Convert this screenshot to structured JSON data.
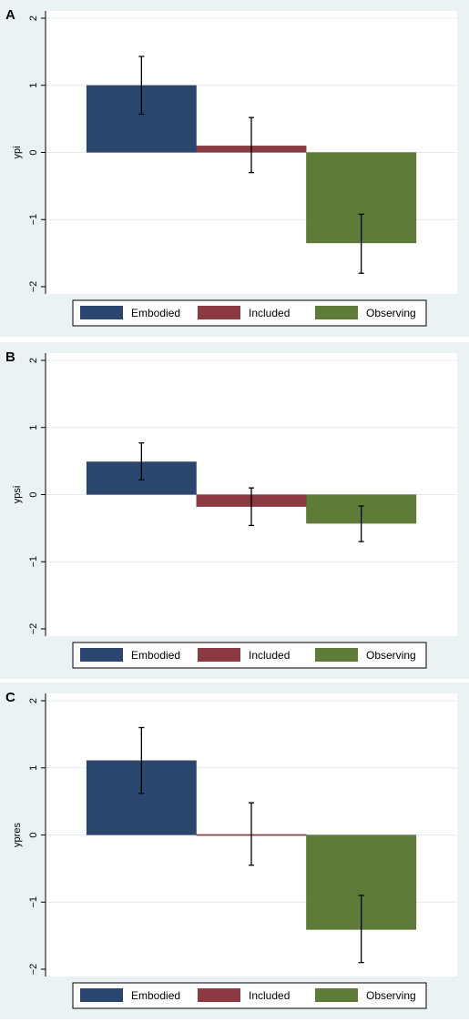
{
  "colors": {
    "panel_background": "#eaf2f3",
    "plot_background": "#ffffff",
    "gridline": "#e3ecee",
    "error_bar": "#000000",
    "series": {
      "Embodied": "#2a466f",
      "Included": "#8b3a42",
      "Observing": "#5f7b38"
    }
  },
  "chart_data": [
    {
      "panel_label": "A",
      "type": "bar",
      "categories": [
        "Embodied",
        "Included",
        "Observing"
      ],
      "values": [
        1.0,
        0.1,
        -1.35
      ],
      "error_low": [
        0.57,
        -0.3,
        -1.8
      ],
      "error_high": [
        1.43,
        0.52,
        -0.92
      ],
      "ylabel": "ypi",
      "ylim": [
        -2,
        2
      ],
      "yticks": [
        "2",
        "1",
        "0",
        "−1",
        "−2"
      ],
      "ytick_values": [
        2,
        1,
        0,
        -1,
        -2
      ],
      "grid": true,
      "legend": [
        "Embodied",
        "Included",
        "Observing"
      ],
      "legend_position": "bottom"
    },
    {
      "panel_label": "B",
      "type": "bar",
      "categories": [
        "Embodied",
        "Included",
        "Observing"
      ],
      "values": [
        0.49,
        -0.18,
        -0.43
      ],
      "error_low": [
        0.22,
        -0.46,
        -0.7
      ],
      "error_high": [
        0.77,
        0.1,
        -0.17
      ],
      "ylabel": "ypsi",
      "ylim": [
        -2,
        2
      ],
      "yticks": [
        "2",
        "1",
        "0",
        "−1",
        "−2"
      ],
      "ytick_values": [
        2,
        1,
        0,
        -1,
        -2
      ],
      "grid": true,
      "legend": [
        "Embodied",
        "Included",
        "Observing"
      ],
      "legend_position": "bottom"
    },
    {
      "panel_label": "C",
      "type": "bar",
      "categories": [
        "Embodied",
        "Included",
        "Observing"
      ],
      "values": [
        1.11,
        0.01,
        -1.41
      ],
      "error_low": [
        0.62,
        -0.45,
        -1.9
      ],
      "error_high": [
        1.6,
        0.48,
        -0.9
      ],
      "ylabel": "ypres",
      "ylim": [
        -2,
        2
      ],
      "yticks": [
        "2",
        "1",
        "0",
        "−1",
        "−2"
      ],
      "ytick_values": [
        2,
        1,
        0,
        -1,
        -2
      ],
      "grid": true,
      "legend": [
        "Embodied",
        "Included",
        "Observing"
      ],
      "legend_position": "bottom"
    }
  ]
}
